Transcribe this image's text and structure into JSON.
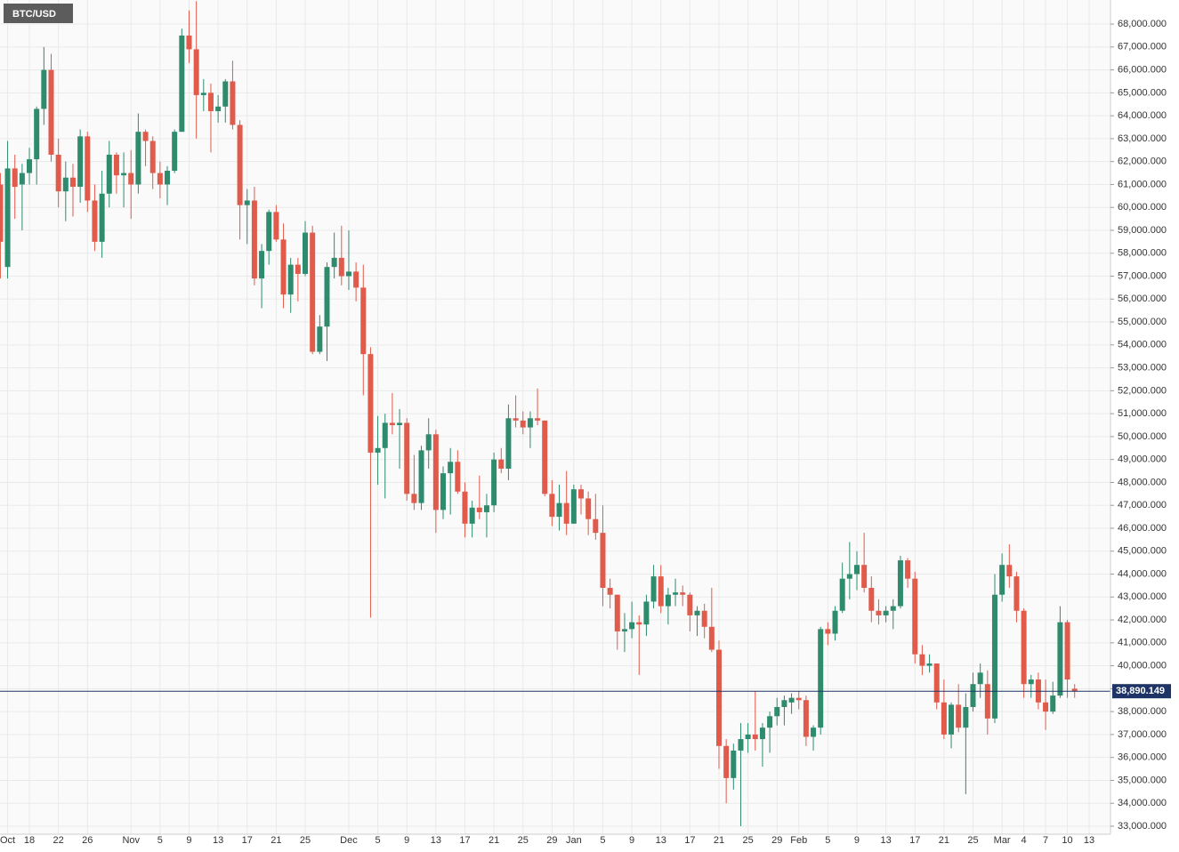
{
  "chart_data": {
    "type": "candlestick",
    "title": "BTC/USD",
    "categories": [
      null,
      "Oct",
      null,
      null,
      "18",
      null,
      null,
      null,
      "22",
      null,
      null,
      null,
      "26",
      null,
      null,
      null,
      null,
      null,
      "Nov",
      null,
      null,
      null,
      "5",
      null,
      null,
      null,
      "9",
      null,
      null,
      null,
      "13",
      null,
      null,
      null,
      "17",
      null,
      null,
      null,
      "21",
      null,
      null,
      null,
      "25",
      null,
      null,
      null,
      null,
      null,
      "Dec",
      null,
      null,
      null,
      "5",
      null,
      null,
      null,
      "9",
      null,
      null,
      null,
      "13",
      null,
      null,
      null,
      "17",
      null,
      null,
      null,
      "21",
      null,
      null,
      null,
      "25",
      null,
      null,
      null,
      "29",
      null,
      null,
      "Jan",
      null,
      null,
      null,
      "5",
      null,
      null,
      null,
      "9",
      null,
      null,
      null,
      "13",
      null,
      null,
      null,
      "17",
      null,
      null,
      null,
      "21",
      null,
      null,
      null,
      "25",
      null,
      null,
      null,
      "29",
      null,
      null,
      "Feb",
      null,
      null,
      null,
      "5",
      null,
      null,
      null,
      "9",
      null,
      null,
      null,
      "13",
      null,
      null,
      null,
      "17",
      null,
      null,
      null,
      "21",
      null,
      null,
      null,
      "25",
      null,
      null,
      null,
      "Mar",
      null,
      null,
      "4",
      null,
      null,
      "7",
      null,
      null,
      "10",
      null,
      null,
      "13"
    ],
    "open": [
      61000,
      57400,
      61700,
      61000,
      61500,
      62100,
      64300,
      66000,
      62300,
      60700,
      61300,
      60900,
      63100,
      60300,
      58500,
      60600,
      62300,
      61400,
      61500,
      61000,
      63300,
      62900,
      61500,
      61000,
      61600,
      63300,
      67500,
      66900,
      64900,
      65000,
      64200,
      64400,
      65500,
      63600,
      60100,
      60300,
      56900,
      58100,
      59800,
      58600,
      56200,
      57500,
      57100,
      58900,
      53700,
      54800,
      57400,
      57800,
      57000,
      57200,
      56500,
      53600,
      49300,
      49500,
      50600,
      50500,
      50600,
      47500,
      47100,
      49400,
      50100,
      46800,
      48400,
      48900,
      47600,
      46200,
      46900,
      46700,
      47000,
      49000,
      48600,
      50800,
      50700,
      50400,
      50800,
      50700,
      47500,
      46500,
      47100,
      46200,
      47700,
      47300,
      46400,
      45800,
      43400,
      43100,
      41500,
      41600,
      41900,
      41800,
      42800,
      43900,
      42600,
      43100,
      43200,
      43100,
      42200,
      42400,
      41700,
      40700,
      36500,
      35100,
      36300,
      36800,
      37000,
      36800,
      37300,
      37800,
      38200,
      38400,
      38600,
      38500,
      36900,
      37300,
      41600,
      41400,
      42400,
      43800,
      44000,
      44400,
      43400,
      42400,
      42200,
      42400,
      42600,
      44600,
      43800,
      40500,
      40000,
      40100,
      38400,
      37000,
      38300,
      37300,
      38200,
      39200,
      39200,
      37700,
      43100,
      44400,
      43900,
      42400,
      39200,
      39400,
      38400,
      38000,
      38700,
      41900,
      39000,
      null,
      null
    ],
    "high": [
      61500,
      62900,
      62300,
      61900,
      62600,
      64400,
      67000,
      66700,
      63000,
      62000,
      61900,
      63400,
      63300,
      61000,
      61600,
      62900,
      62400,
      62400,
      62500,
      64100,
      63400,
      63100,
      62000,
      61800,
      63400,
      67800,
      68600,
      69000,
      65600,
      65400,
      64900,
      65600,
      66400,
      63800,
      60800,
      60900,
      58400,
      59900,
      60100,
      59300,
      57800,
      57800,
      59400,
      59200,
      55300,
      57600,
      58900,
      59200,
      59000,
      57600,
      57500,
      53900,
      50900,
      51000,
      51900,
      51200,
      50800,
      49200,
      49600,
      50800,
      50300,
      48700,
      49500,
      49400,
      48000,
      47200,
      48300,
      47500,
      49300,
      49500,
      51400,
      51800,
      51100,
      51100,
      52100,
      50700,
      48100,
      47900,
      48500,
      47900,
      47900,
      47600,
      47500,
      47000,
      43800,
      43100,
      42300,
      42800,
      42200,
      43100,
      44400,
      44400,
      43400,
      43800,
      43500,
      43200,
      42600,
      42700,
      43400,
      41100,
      36800,
      36600,
      37500,
      37500,
      38900,
      37500,
      38000,
      38600,
      38700,
      38800,
      38900,
      38700,
      37400,
      41700,
      41900,
      42600,
      44500,
      45400,
      45000,
      45800,
      43900,
      42900,
      42600,
      42900,
      44800,
      44700,
      44100,
      40900,
      40500,
      40100,
      39400,
      38400,
      39200,
      38800,
      39700,
      40100,
      39800,
      44000,
      44900,
      45300,
      44100,
      42500,
      39600,
      39700,
      39400,
      39300,
      42600,
      42000,
      39200,
      null,
      null
    ],
    "low": [
      56900,
      56900,
      59500,
      59000,
      61000,
      61000,
      63600,
      62000,
      60000,
      59400,
      59600,
      60200,
      59800,
      58100,
      57800,
      60000,
      60600,
      60000,
      59500,
      60600,
      61800,
      60800,
      60400,
      60100,
      61500,
      63300,
      66300,
      63000,
      64200,
      62400,
      63700,
      63700,
      63400,
      58600,
      58400,
      56600,
      55600,
      57500,
      58500,
      55600,
      55400,
      55900,
      57000,
      53600,
      53600,
      53300,
      56900,
      56600,
      56400,
      55900,
      51800,
      42100,
      47900,
      47300,
      50100,
      48600,
      47200,
      46800,
      46800,
      48600,
      45800,
      46400,
      46600,
      47500,
      45600,
      45600,
      46400,
      45600,
      46700,
      48400,
      48100,
      50400,
      50100,
      49500,
      50500,
      47400,
      46100,
      45900,
      45700,
      46200,
      46600,
      45700,
      45500,
      42600,
      42500,
      40700,
      40600,
      41200,
      39600,
      41300,
      42500,
      42300,
      41800,
      42600,
      42600,
      41500,
      41300,
      41200,
      40600,
      35500,
      34000,
      34600,
      33000,
      36200,
      36300,
      35600,
      36200,
      37400,
      37400,
      37900,
      38100,
      36500,
      36300,
      37000,
      40900,
      41100,
      42300,
      42900,
      43300,
      43200,
      41900,
      41800,
      41900,
      41600,
      42500,
      43400,
      40100,
      39600,
      39700,
      38100,
      36800,
      36400,
      37100,
      34400,
      38000,
      38600,
      37000,
      37500,
      42800,
      43400,
      41900,
      38600,
      38600,
      38100,
      37200,
      37900,
      38600,
      38600,
      38600,
      null,
      null
    ],
    "close": [
      58500,
      61700,
      60900,
      61500,
      62100,
      64300,
      66000,
      62300,
      60700,
      61300,
      60900,
      63100,
      60300,
      58500,
      60600,
      62300,
      61400,
      61500,
      61000,
      63300,
      62900,
      61500,
      61000,
      61600,
      63300,
      67500,
      66900,
      64900,
      65000,
      64200,
      64400,
      65500,
      63600,
      60100,
      60300,
      56900,
      58100,
      59800,
      58600,
      56200,
      57500,
      57100,
      58900,
      53700,
      54800,
      57400,
      57800,
      57000,
      57200,
      56500,
      53600,
      49300,
      49500,
      50600,
      50500,
      50600,
      47500,
      47100,
      49400,
      50100,
      46800,
      48400,
      48900,
      47600,
      46200,
      46900,
      46700,
      47000,
      49000,
      48600,
      50800,
      50700,
      50400,
      50800,
      50700,
      47500,
      46500,
      47100,
      46200,
      47700,
      47300,
      46400,
      45800,
      43400,
      43100,
      41500,
      41600,
      41900,
      41800,
      42800,
      43900,
      42600,
      43100,
      43200,
      43100,
      42200,
      42400,
      41700,
      40700,
      36500,
      35100,
      36300,
      36800,
      37000,
      36800,
      37300,
      37800,
      38200,
      38500,
      38600,
      38500,
      36900,
      37300,
      41600,
      41400,
      42400,
      43800,
      44000,
      44400,
      43400,
      42400,
      42200,
      42400,
      42600,
      44600,
      43800,
      40500,
      40000,
      40100,
      38400,
      37000,
      38300,
      37300,
      38200,
      39200,
      39700,
      37700,
      43100,
      44400,
      43900,
      42400,
      39200,
      39400,
      38400,
      38000,
      38700,
      41900,
      39400,
      38890.149,
      null,
      null
    ],
    "up_color": "#2e8b6e",
    "down_color": "#e05b4b",
    "last_price": {
      "value": 38890.149,
      "label": "38,890.149"
    },
    "last_price_color": "#1e3466",
    "ylim": [
      32650,
      69050
    ],
    "yticks": [
      {
        "value": 33000,
        "label": "33,000.000"
      },
      {
        "value": 34000,
        "label": "34,000.000"
      },
      {
        "value": 35000,
        "label": "35,000.000"
      },
      {
        "value": 36000,
        "label": "36,000.000"
      },
      {
        "value": 37000,
        "label": "37,000.000"
      },
      {
        "value": 38000,
        "label": "38,000.000"
      },
      {
        "value": 39000,
        "label": "39,000.000"
      },
      {
        "value": 40000,
        "label": "40,000.000"
      },
      {
        "value": 41000,
        "label": "41,000.000"
      },
      {
        "value": 42000,
        "label": "42,000.000"
      },
      {
        "value": 43000,
        "label": "43,000.000"
      },
      {
        "value": 44000,
        "label": "44,000.000"
      },
      {
        "value": 45000,
        "label": "45,000.000"
      },
      {
        "value": 46000,
        "label": "46,000.000"
      },
      {
        "value": 47000,
        "label": "47,000.000"
      },
      {
        "value": 48000,
        "label": "48,000.000"
      },
      {
        "value": 49000,
        "label": "49,000.000"
      },
      {
        "value": 50000,
        "label": "50,000.000"
      },
      {
        "value": 51000,
        "label": "51,000.000"
      },
      {
        "value": 52000,
        "label": "52,000.000"
      },
      {
        "value": 53000,
        "label": "53,000.000"
      },
      {
        "value": 54000,
        "label": "54,000.000"
      },
      {
        "value": 55000,
        "label": "55,000.000"
      },
      {
        "value": 56000,
        "label": "56,000.000"
      },
      {
        "value": 57000,
        "label": "57,000.000"
      },
      {
        "value": 58000,
        "label": "58,000.000"
      },
      {
        "value": 59000,
        "label": "59,000.000"
      },
      {
        "value": 60000,
        "label": "60,000.000"
      },
      {
        "value": 61000,
        "label": "61,000.000"
      },
      {
        "value": 62000,
        "label": "62,000.000"
      },
      {
        "value": 63000,
        "label": "63,000.000"
      },
      {
        "value": 64000,
        "label": "64,000.000"
      },
      {
        "value": 65000,
        "label": "65,000.000"
      },
      {
        "value": 66000,
        "label": "66,000.000"
      },
      {
        "value": 67000,
        "label": "67,000.000"
      },
      {
        "value": 68000,
        "label": "68,000.000"
      }
    ],
    "grid": true
  }
}
